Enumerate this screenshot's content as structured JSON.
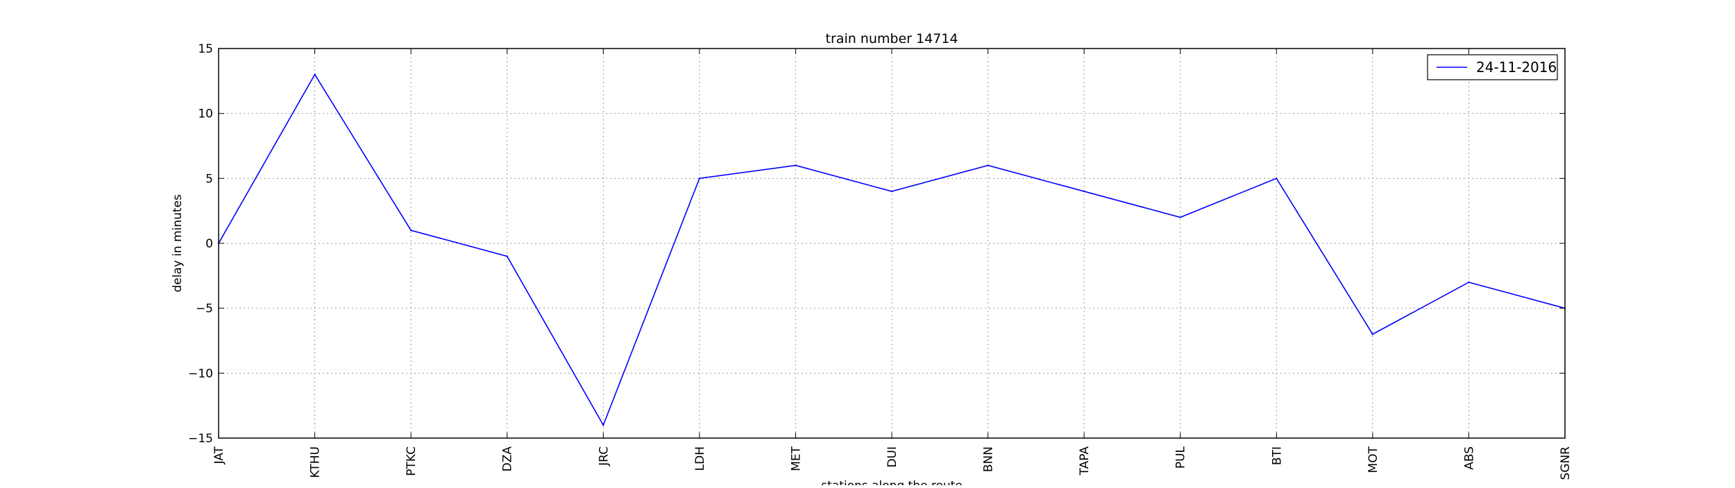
{
  "chart_data": {
    "type": "line",
    "title": "train number 14714",
    "xlabel": "stations along the route",
    "ylabel": "delay in minutes",
    "categories": [
      "JAT",
      "KTHU",
      "PTKC",
      "DZA",
      "JRC",
      "LDH",
      "MET",
      "DUI",
      "BNN",
      "TAPA",
      "PUL",
      "BTI",
      "MOT",
      "ABS",
      "SGNR"
    ],
    "series": [
      {
        "name": "24-11-2016",
        "color": "#0000ff",
        "values": [
          0,
          13,
          1,
          -1,
          -14,
          5,
          6,
          4,
          6,
          4,
          2,
          5,
          -7,
          -3,
          -5
        ]
      }
    ],
    "ylim": [
      -15,
      15
    ],
    "yticks": [
      15,
      10,
      5,
      0,
      -5,
      -10,
      -15
    ],
    "ytick_labels": [
      "15",
      "10",
      "5",
      "0",
      "−5",
      "−10",
      "−15"
    ],
    "grid": true,
    "legend_position": "top-right"
  }
}
